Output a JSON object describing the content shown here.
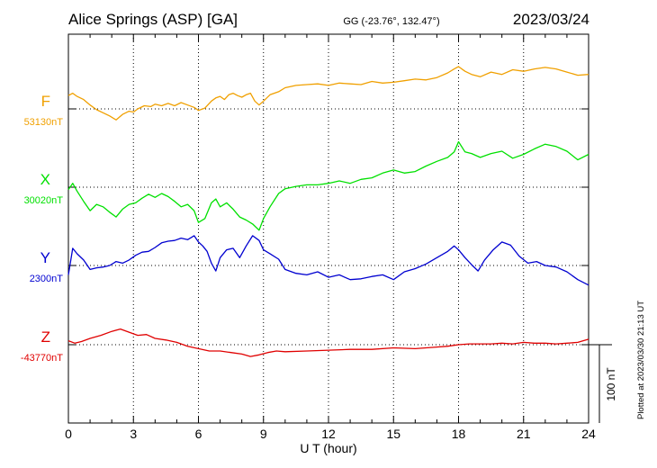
{
  "header": {
    "station": "Alice Springs (ASP)  [GA]",
    "coords": "GG (-23.76°, 132.47°)",
    "date": "2023/03/24"
  },
  "plotted_note": "Plotted at 2023/03/30 21:13 UT",
  "chart_data": {
    "type": "line",
    "xlabel": "U T (hour)",
    "xlim": [
      0,
      24
    ],
    "x_ticks": [
      "0",
      "3",
      "6",
      "9",
      "12",
      "15",
      "18",
      "21",
      "24"
    ],
    "scale_bar_label": "100 nT",
    "scale_bar_nT": 100,
    "channels": [
      {
        "name": "F",
        "baseline_label": "53130nT",
        "baseline_nT": 53130,
        "color": "#f0a000",
        "x": [
          0,
          0.2,
          0.4,
          0.7,
          1.0,
          1.3,
          1.6,
          1.9,
          2.2,
          2.5,
          2.8,
          3.0,
          3.2,
          3.5,
          3.8,
          4.0,
          4.3,
          4.6,
          4.9,
          5.2,
          5.5,
          5.8,
          6.0,
          6.3,
          6.6,
          6.8,
          7.0,
          7.2,
          7.4,
          7.6,
          7.8,
          8.0,
          8.2,
          8.4,
          8.6,
          8.8,
          9.0,
          9.3,
          9.7,
          10.0,
          10.5,
          11.0,
          11.5,
          12.0,
          12.5,
          13.0,
          13.5,
          14.0,
          14.5,
          15.0,
          15.5,
          16.0,
          16.5,
          17.0,
          17.5,
          17.8,
          18.0,
          18.3,
          18.6,
          19.0,
          19.5,
          20.0,
          20.5,
          21.0,
          21.5,
          22.0,
          22.5,
          23.0,
          23.5,
          24.0
        ],
        "y": [
          17,
          20,
          16,
          12,
          5,
          -1,
          -5,
          -9,
          -14,
          -7,
          -3,
          -4,
          0,
          4,
          3,
          6,
          4,
          7,
          4,
          8,
          5,
          2,
          -2,
          1,
          10,
          14,
          16,
          12,
          18,
          20,
          17,
          15,
          18,
          20,
          10,
          5,
          10,
          18,
          22,
          27,
          30,
          31,
          32,
          30,
          33,
          32,
          31,
          35,
          33,
          34,
          36,
          38,
          37,
          40,
          46,
          51,
          54,
          48,
          44,
          41,
          47,
          44,
          50,
          48,
          51,
          53,
          51,
          47,
          43,
          44
        ]
      },
      {
        "name": "X",
        "baseline_label": "30020nT",
        "baseline_nT": 30020,
        "color": "#00e000",
        "x": [
          0,
          0.2,
          0.4,
          0.7,
          1.0,
          1.3,
          1.6,
          1.9,
          2.2,
          2.5,
          2.8,
          3.1,
          3.4,
          3.7,
          4.0,
          4.3,
          4.6,
          4.9,
          5.2,
          5.5,
          5.8,
          6.0,
          6.3,
          6.6,
          6.8,
          7.0,
          7.3,
          7.6,
          7.9,
          8.2,
          8.5,
          8.8,
          9.0,
          9.3,
          9.7,
          10.0,
          10.5,
          11.0,
          11.5,
          12.0,
          12.5,
          13.0,
          13.5,
          14.0,
          14.5,
          15.0,
          15.5,
          16.0,
          16.5,
          17.0,
          17.5,
          17.8,
          18.0,
          18.3,
          18.6,
          19.0,
          19.5,
          20.0,
          20.5,
          21.0,
          21.5,
          22.0,
          22.5,
          23.0,
          23.5,
          24.0
        ],
        "y": [
          -3,
          5,
          -5,
          -18,
          -30,
          -22,
          -25,
          -32,
          -38,
          -28,
          -22,
          -20,
          -14,
          -9,
          -13,
          -8,
          -12,
          -18,
          -25,
          -22,
          -30,
          -45,
          -40,
          -20,
          -15,
          -25,
          -20,
          -28,
          -38,
          -42,
          -47,
          -55,
          -40,
          -25,
          -8,
          -2,
          1,
          3,
          3,
          5,
          8,
          5,
          10,
          12,
          18,
          22,
          18,
          20,
          27,
          33,
          38,
          45,
          58,
          45,
          43,
          38,
          43,
          46,
          37,
          42,
          49,
          55,
          52,
          46,
          35,
          42
        ]
      },
      {
        "name": "Y",
        "baseline_label": "2300nT",
        "baseline_nT": 2300,
        "color": "#0000d0",
        "x": [
          0,
          0.2,
          0.4,
          0.7,
          1.0,
          1.3,
          1.6,
          1.9,
          2.2,
          2.5,
          2.8,
          3.1,
          3.4,
          3.7,
          4.0,
          4.3,
          4.6,
          4.9,
          5.2,
          5.5,
          5.8,
          6.0,
          6.2,
          6.4,
          6.6,
          6.8,
          7.0,
          7.3,
          7.6,
          7.9,
          8.2,
          8.5,
          8.8,
          9.0,
          9.3,
          9.7,
          10.0,
          10.5,
          11.0,
          11.5,
          12.0,
          12.5,
          13.0,
          13.5,
          14.0,
          14.5,
          15.0,
          15.5,
          16.0,
          16.5,
          17.0,
          17.5,
          17.8,
          18.0,
          18.3,
          18.6,
          18.9,
          19.2,
          19.6,
          20.0,
          20.4,
          20.8,
          21.2,
          21.6,
          22.0,
          22.5,
          23.0,
          23.5,
          24.0
        ],
        "y": [
          -12,
          22,
          15,
          7,
          -5,
          -3,
          -2,
          0,
          5,
          3,
          7,
          13,
          17,
          18,
          23,
          29,
          31,
          32,
          35,
          33,
          38,
          30,
          25,
          18,
          3,
          -7,
          10,
          20,
          22,
          10,
          25,
          38,
          32,
          20,
          15,
          8,
          -5,
          -10,
          -12,
          -8,
          -15,
          -12,
          -18,
          -17,
          -14,
          -12,
          -18,
          -8,
          -4,
          2,
          10,
          18,
          25,
          20,
          10,
          1,
          -7,
          7,
          20,
          30,
          26,
          12,
          3,
          5,
          0,
          -2,
          -8,
          -18,
          -25
        ]
      },
      {
        "name": "Z",
        "baseline_label": "-43770nT",
        "baseline_nT": -43770,
        "color": "#e00000",
        "x": [
          0,
          0.3,
          0.6,
          1.0,
          1.5,
          2.0,
          2.4,
          2.8,
          3.2,
          3.6,
          4.0,
          4.5,
          5.0,
          5.5,
          6.0,
          6.5,
          7.0,
          7.5,
          8.0,
          8.4,
          8.8,
          9.2,
          9.6,
          10.0,
          11.0,
          12.0,
          13.0,
          14.0,
          15.0,
          16.0,
          17.0,
          17.5,
          18.0,
          18.5,
          19.0,
          19.5,
          20.0,
          20.5,
          21.0,
          21.5,
          22.0,
          22.5,
          23.0,
          23.5,
          24.0
        ],
        "y": [
          5,
          2,
          4,
          8,
          12,
          17,
          20,
          16,
          12,
          13,
          8,
          6,
          3,
          -2,
          -5,
          -8,
          -8,
          -10,
          -12,
          -15,
          -13,
          -10,
          -8,
          -9,
          -8,
          -7,
          -6,
          -6,
          -4,
          -5,
          -3,
          -2,
          0,
          1,
          1,
          1,
          2,
          1,
          3,
          2,
          2,
          1,
          2,
          3,
          7
        ]
      }
    ]
  }
}
